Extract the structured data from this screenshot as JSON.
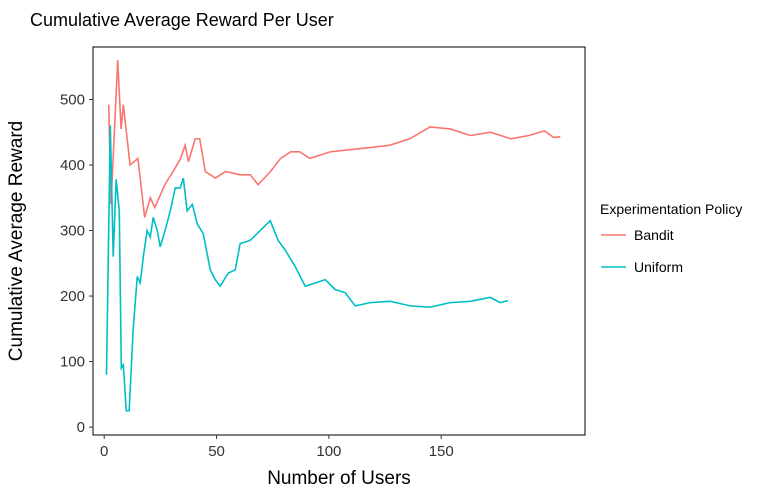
{
  "chart_data": {
    "type": "line",
    "title": "Cumulative Average Reward Per User",
    "x_label": "Number of Users",
    "y_label": "Cumulative Average Reward",
    "legend_title": "Experimentation Policy",
    "xlim": [
      -5,
      214
    ],
    "xticks": [
      0,
      50,
      100,
      150
    ],
    "ylim": [
      -12,
      580
    ],
    "yticks": [
      0,
      100,
      200,
      300,
      400,
      500
    ],
    "series": [
      {
        "name": "Bandit",
        "color": "#f8766d",
        "x": [
          2,
          3,
          6,
          7.5,
          8.5,
          11.5,
          15,
          18,
          20.5,
          22.5,
          27,
          31.5,
          34,
          36,
          37.5,
          40.5,
          42.5,
          45,
          49.5,
          54,
          60.5,
          65,
          68.5,
          74,
          78.5,
          83,
          87,
          91.5,
          100.5,
          114,
          127,
          136,
          145,
          154,
          163,
          172,
          181,
          189,
          196,
          200,
          203
        ],
        "values": [
          492,
          340,
          560,
          455,
          492,
          400,
          410,
          320,
          350,
          335,
          370,
          395,
          410,
          430,
          405,
          440,
          440,
          390,
          380,
          390,
          385,
          385,
          370,
          390,
          410,
          420,
          420,
          410,
          420,
          425,
          430,
          440,
          458,
          455,
          445,
          450,
          440,
          445,
          452,
          442,
          443
        ]
      },
      {
        "name": "Uniform",
        "color": "#00bfc4",
        "x": [
          1,
          2.7,
          4,
          5.3,
          6.7,
          7.6,
          8.5,
          9.8,
          11.1,
          12.9,
          14.7,
          16,
          17.4,
          19.1,
          20.5,
          21.8,
          23.6,
          24.9,
          27.1,
          29.4,
          31.6,
          33.8,
          35.2,
          36.9,
          39.2,
          41.4,
          44.1,
          47.2,
          49.4,
          51.6,
          55.2,
          58.3,
          60.5,
          65,
          69.4,
          73.9,
          77.4,
          80.6,
          85,
          89.5,
          93.9,
          98.4,
          102.8,
          107.3,
          111.7,
          118.4,
          127.3,
          136.2,
          145,
          154,
          163,
          171.8,
          176.2,
          179.8
        ],
        "values": [
          80,
          460,
          260,
          378,
          330,
          90,
          95,
          25,
          25,
          150,
          230,
          220,
          260,
          300,
          290,
          320,
          300,
          275,
          300,
          330,
          365,
          365,
          380,
          330,
          340,
          310,
          295,
          240,
          225,
          215,
          235,
          240,
          280,
          285,
          300,
          315,
          285,
          270,
          245,
          215,
          220,
          225,
          210,
          205,
          185,
          190,
          192,
          185,
          183,
          190,
          192,
          198,
          190,
          193
        ]
      }
    ]
  }
}
